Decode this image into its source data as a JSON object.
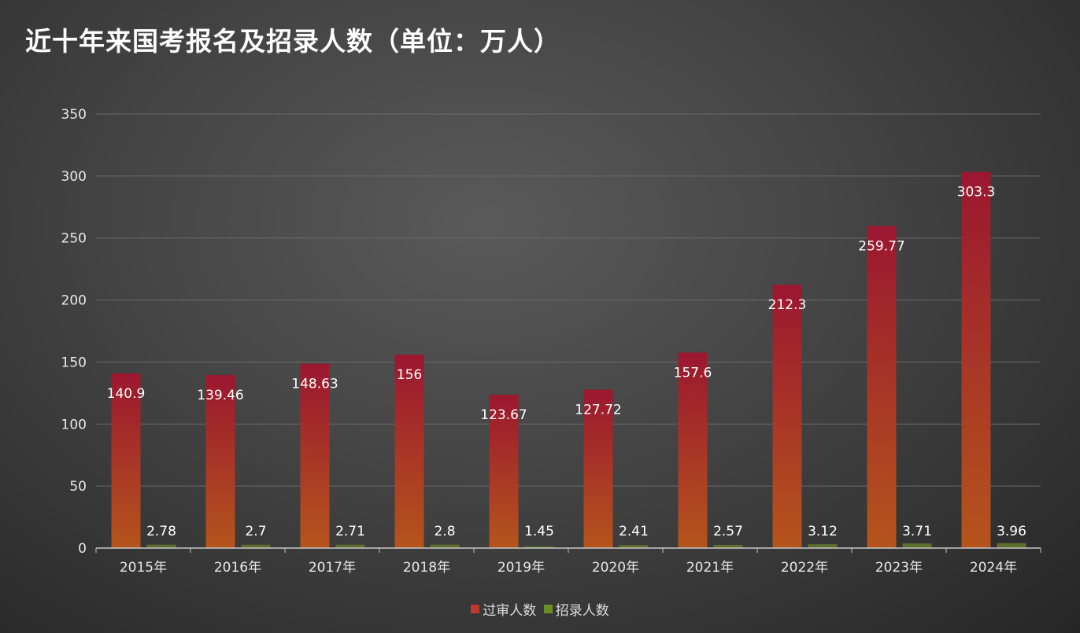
{
  "chart_data": {
    "type": "bar",
    "title": "近十年来国考报名及招录人数（单位：万人）",
    "categories": [
      "2015年",
      "2016年",
      "2017年",
      "2018年",
      "2019年",
      "2020年",
      "2021年",
      "2022年",
      "2023年",
      "2024年"
    ],
    "series": [
      {
        "name": "过审人数",
        "values": [
          140.9,
          139.46,
          148.63,
          156,
          123.67,
          127.72,
          157.6,
          212.3,
          259.77,
          303.3
        ],
        "labels": [
          "140.9",
          "139.46",
          "148.63",
          "156",
          "123.67",
          "127.72",
          "157.6",
          "212.3",
          "259.77",
          "303.3"
        ],
        "color_top": "#9b1730",
        "color_bottom": "#b5541c",
        "legend_color": "#c0392b"
      },
      {
        "name": "招录人数",
        "values": [
          2.78,
          2.7,
          2.71,
          2.8,
          1.45,
          2.41,
          2.57,
          3.12,
          3.71,
          3.96
        ],
        "labels": [
          "2.78",
          "2.7",
          "2.71",
          "2.8",
          "1.45",
          "2.41",
          "2.57",
          "3.12",
          "3.71",
          "3.96"
        ],
        "color_top": "#5e6e2e",
        "color_bottom": "#5e6e2e",
        "legend_color": "#6b8e23"
      }
    ],
    "ylim": [
      0,
      350
    ],
    "yticks": [
      0,
      50,
      100,
      150,
      200,
      250,
      300,
      350
    ],
    "xlabel": "",
    "ylabel": "",
    "grid": true,
    "legend_position": "bottom"
  }
}
